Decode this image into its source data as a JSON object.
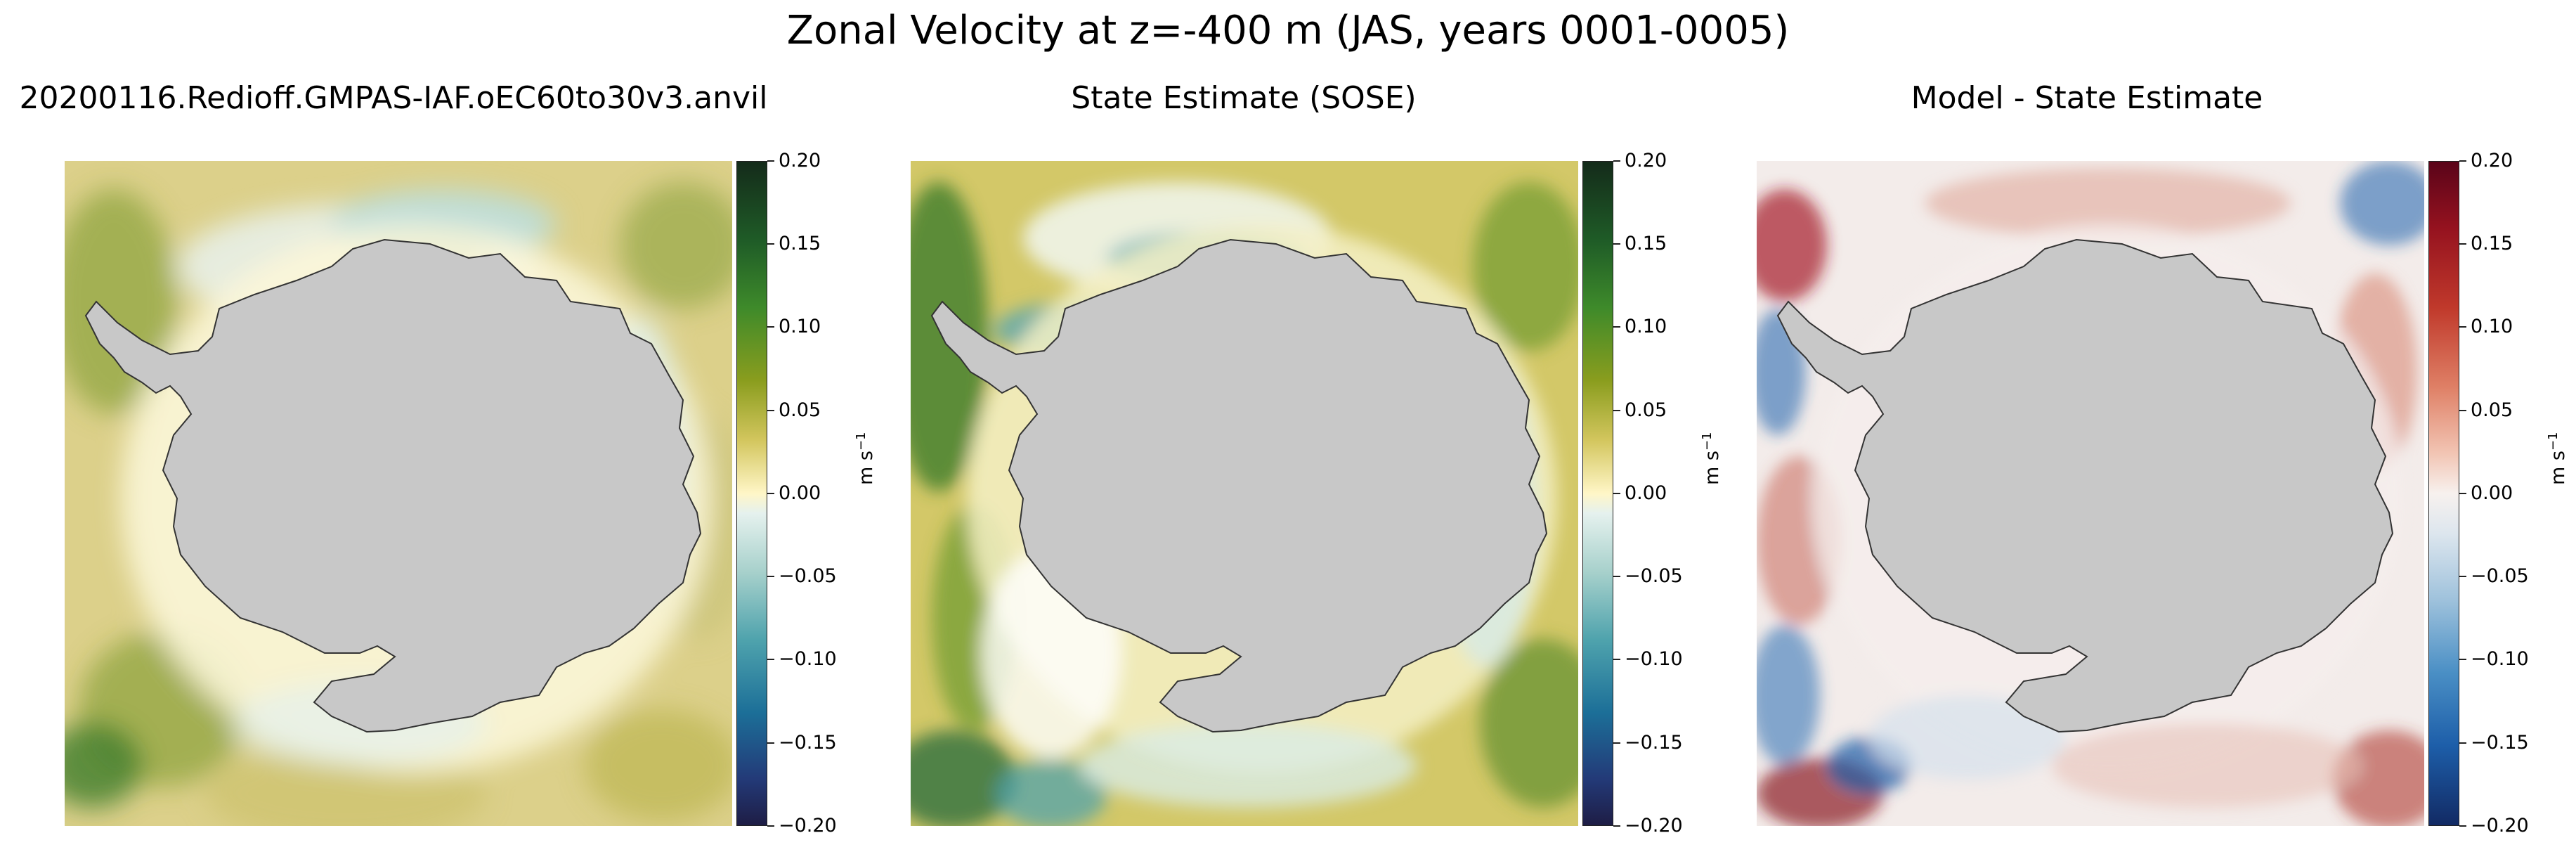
{
  "title": "Zonal Velocity at z=-400 m (JAS, years 0001-0005)",
  "panels": [
    {
      "title": "20200116.Redioff.GMPAS-IAF.oEC60to30v3.anvil",
      "colormap": "green-yellow-blue"
    },
    {
      "title": "State Estimate (SOSE)",
      "colormap": "green-yellow-blue"
    },
    {
      "title": "Model - State Estimate",
      "colormap": "red-white-blue"
    }
  ],
  "colorbar": {
    "ticks": [
      "0.20",
      "0.15",
      "0.10",
      "0.05",
      "0.00",
      "−0.05",
      "−0.10",
      "−0.15",
      "−0.20"
    ],
    "unit_base": "m s",
    "unit_exp": "−1"
  },
  "colors": {
    "land": "#c8c8c8",
    "coast": "#333333",
    "green_yellow_positive": "#1f5c27",
    "blue_negative": "#1c6f98",
    "diff_positive": "#c0392b",
    "diff_negative": "#1d5ea9"
  }
}
